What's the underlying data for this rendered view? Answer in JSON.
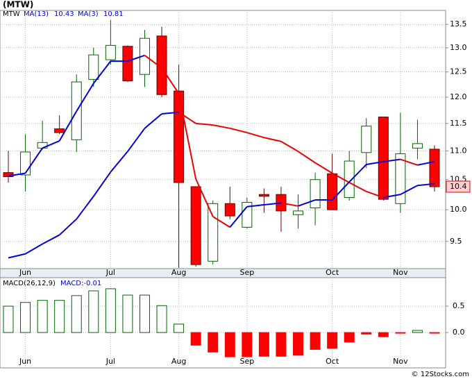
{
  "title": "(MTW)",
  "footer": "© 12Stocks.com",
  "chart_data": [
    {
      "type": "candlestick",
      "ticker": "MTW",
      "categories": [
        null,
        "Jun",
        null,
        null,
        null,
        null,
        "Jul",
        null,
        null,
        null,
        "Aug",
        null,
        null,
        null,
        "Sep",
        null,
        null,
        null,
        null,
        "Oct",
        null,
        null,
        null,
        "Nov",
        null,
        null
      ],
      "open": [
        10.62,
        10.58,
        11.05,
        11.4,
        11.2,
        12.35,
        12.75,
        13.03,
        12.45,
        13.25,
        12.12,
        10.38,
        9.2,
        10.1,
        9.72,
        10.25,
        10.25,
        9.92,
        10.03,
        10.6,
        10.2,
        10.97,
        11.62,
        10.1,
        11.05,
        11.03
      ],
      "high": [
        11.0,
        11.3,
        11.55,
        11.65,
        12.45,
        13.0,
        13.6,
        13.05,
        13.38,
        13.45,
        12.65,
        10.38,
        10.15,
        10.38,
        10.2,
        10.35,
        10.38,
        10.25,
        10.62,
        10.95,
        11.0,
        11.6,
        11.62,
        11.7,
        11.57,
        11.1
      ],
      "low": [
        10.45,
        10.3,
        11.02,
        11.3,
        10.98,
        12.2,
        12.65,
        12.3,
        12.2,
        12.0,
        9.1,
        9.12,
        9.15,
        9.85,
        9.7,
        9.95,
        9.65,
        9.7,
        9.75,
        10.0,
        10.15,
        10.7,
        10.15,
        9.95,
        10.85,
        10.3
      ],
      "close": [
        10.55,
        10.98,
        11.15,
        11.33,
        12.3,
        12.85,
        13.05,
        12.32,
        13.2,
        12.05,
        10.45,
        9.15,
        10.1,
        9.9,
        10.12,
        10.22,
        9.98,
        9.98,
        10.5,
        10.0,
        10.82,
        11.45,
        10.17,
        10.95,
        11.13,
        10.38
      ],
      "up_color": "#ffffff",
      "down_color": "#ff0000",
      "up_outline": "#006400",
      "down_outline": "#660000",
      "last_label": {
        "value": 10.38,
        "label": "10.4"
      },
      "series": [
        {
          "name": "MA(13)",
          "legend_value": 10.43,
          "values": [
            9.25,
            9.31,
            9.46,
            9.6,
            9.85,
            10.22,
            10.63,
            10.99,
            11.41,
            11.68,
            11.71,
            11.5,
            11.47,
            11.41,
            11.33,
            11.24,
            11.17,
            10.99,
            10.79,
            10.61,
            10.45,
            10.3,
            10.2,
            10.25,
            10.4,
            10.43
          ]
        },
        {
          "name": "MA(3)",
          "legend_value": 10.81,
          "values": [
            10.56,
            10.61,
            11.05,
            11.18,
            11.73,
            12.27,
            12.72,
            12.72,
            12.84,
            12.58,
            12.07,
            10.51,
            9.89,
            9.72,
            10.05,
            10.08,
            10.11,
            10.06,
            10.16,
            10.16,
            10.46,
            10.76,
            10.81,
            10.85,
            10.75,
            10.81
          ]
        }
      ],
      "ma_up_color": "#0000dd",
      "ma_down_color": "#ee0000",
      "log_scale": true,
      "grid": true,
      "ylim": [
        9.09,
        13.81
      ],
      "yticks": [
        9.5,
        {
          "value": 10,
          "label": "10.0"
        },
        10.5,
        {
          "value": 11,
          "label": "11.0"
        },
        11.5,
        {
          "value": 12,
          "label": "12.0"
        },
        12.5,
        {
          "value": 13,
          "label": "13.0"
        },
        13.5
      ]
    },
    {
      "type": "bar",
      "name": "MACD(26,12,9)",
      "legend": "MACD:-0.01",
      "categories": [
        null,
        "Jun",
        null,
        null,
        null,
        null,
        "Jul",
        null,
        null,
        null,
        "Aug",
        null,
        null,
        null,
        "Sep",
        null,
        null,
        null,
        null,
        "Oct",
        null,
        null,
        null,
        "Nov",
        null,
        null
      ],
      "values": [
        0.5,
        0.57,
        0.61,
        0.61,
        0.7,
        0.79,
        0.83,
        0.71,
        0.71,
        0.51,
        0.16,
        -0.24,
        -0.37,
        -0.46,
        -0.46,
        -0.45,
        -0.45,
        -0.43,
        -0.32,
        -0.3,
        -0.18,
        -0.03,
        -0.08,
        -0.01,
        0.04,
        -0.01
      ],
      "pos_color": "#ffffff",
      "neg_color": "#ff0000",
      "outline": "#006400",
      "grid": true,
      "ylim": [
        -0.67,
        1.04
      ],
      "yticks": [
        {
          "value": 0,
          "label": "0.0"
        },
        0.5
      ]
    }
  ]
}
